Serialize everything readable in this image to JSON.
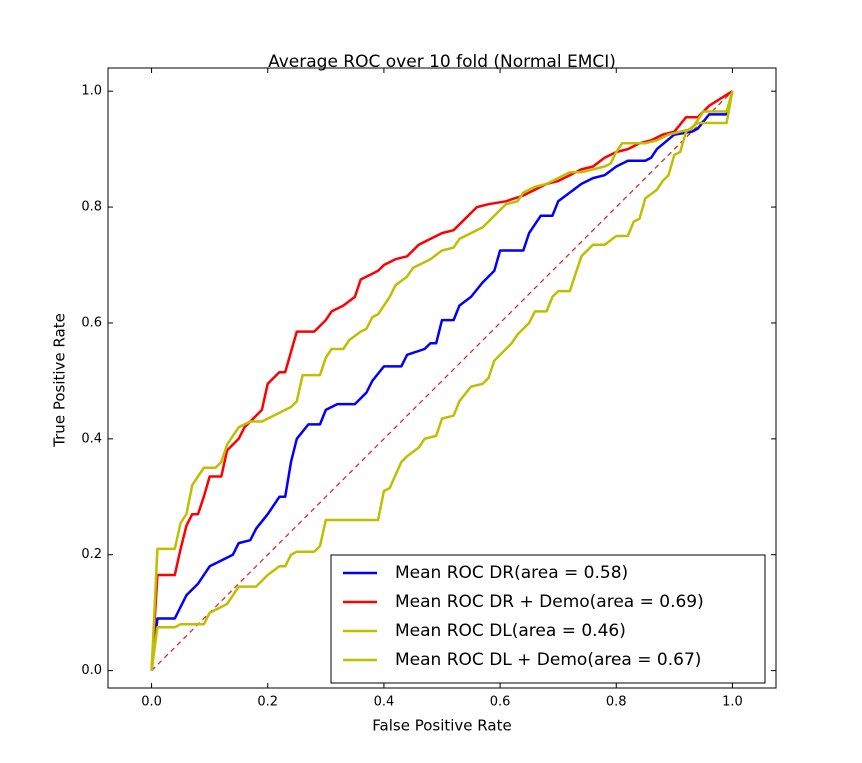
{
  "chart_data": {
    "type": "line",
    "title": "Average ROC over 10 fold (Normal EMCI)",
    "x_label": "False Positive Rate",
    "y_label": "True Positive Rate",
    "xlim": [
      -0.075,
      1.075
    ],
    "ylim": [
      -0.03,
      1.04
    ],
    "xticks": [
      {
        "value": 0,
        "label": "0.0"
      },
      0.2,
      0.4,
      0.6,
      0.8,
      {
        "value": 1,
        "label": "1.0"
      }
    ],
    "yticks": [
      {
        "value": 0,
        "label": "0.0"
      },
      0.2,
      0.4,
      0.6,
      0.8,
      {
        "value": 1,
        "label": "1.0"
      }
    ],
    "legend": "lower right",
    "diagonal": {
      "x": [
        0,
        1
      ],
      "values": [
        0,
        1
      ],
      "color": "#e41a1c",
      "dashed": true
    },
    "series": [
      {
        "name": "Mean ROC DR(area = 0.58)",
        "color": "#0000ff",
        "x": [
          0,
          0.01,
          0.04,
          0.06,
          0.08,
          0.1,
          0.12,
          0.14,
          0.15,
          0.17,
          0.18,
          0.2,
          0.22,
          0.23,
          0.24,
          0.25,
          0.27,
          0.29,
          0.3,
          0.32,
          0.35,
          0.37,
          0.38,
          0.4,
          0.43,
          0.44,
          0.47,
          0.48,
          0.49,
          0.5,
          0.52,
          0.53,
          0.55,
          0.57,
          0.59,
          0.6,
          0.64,
          0.65,
          0.67,
          0.69,
          0.7,
          0.72,
          0.74,
          0.76,
          0.78,
          0.8,
          0.82,
          0.85,
          0.86,
          0.87,
          0.9,
          0.93,
          0.94,
          0.96,
          0.99,
          1
        ],
        "values": [
          0,
          0.09,
          0.09,
          0.13,
          0.15,
          0.18,
          0.19,
          0.2,
          0.22,
          0.225,
          0.245,
          0.27,
          0.3,
          0.3,
          0.36,
          0.4,
          0.425,
          0.425,
          0.45,
          0.46,
          0.46,
          0.48,
          0.5,
          0.525,
          0.525,
          0.545,
          0.555,
          0.565,
          0.565,
          0.605,
          0.605,
          0.63,
          0.645,
          0.67,
          0.69,
          0.725,
          0.725,
          0.755,
          0.785,
          0.785,
          0.81,
          0.825,
          0.84,
          0.85,
          0.855,
          0.87,
          0.88,
          0.88,
          0.885,
          0.9,
          0.925,
          0.93,
          0.935,
          0.96,
          0.96,
          1
        ]
      },
      {
        "name": "Mean ROC DR + Demo(area = 0.69)",
        "color": "#ff0000",
        "x": [
          0,
          0.01,
          0.04,
          0.05,
          0.06,
          0.07,
          0.08,
          0.09,
          0.1,
          0.12,
          0.13,
          0.15,
          0.16,
          0.18,
          0.19,
          0.2,
          0.22,
          0.23,
          0.24,
          0.25,
          0.28,
          0.3,
          0.31,
          0.33,
          0.35,
          0.36,
          0.38,
          0.39,
          0.4,
          0.42,
          0.44,
          0.46,
          0.48,
          0.5,
          0.52,
          0.54,
          0.56,
          0.58,
          0.61,
          0.64,
          0.66,
          0.68,
          0.7,
          0.72,
          0.74,
          0.76,
          0.78,
          0.8,
          0.82,
          0.84,
          0.86,
          0.88,
          0.9,
          0.92,
          0.94,
          0.96,
          1
        ],
        "values": [
          0,
          0.165,
          0.165,
          0.21,
          0.25,
          0.27,
          0.27,
          0.3,
          0.335,
          0.335,
          0.38,
          0.4,
          0.42,
          0.44,
          0.45,
          0.495,
          0.515,
          0.515,
          0.55,
          0.585,
          0.585,
          0.605,
          0.62,
          0.63,
          0.645,
          0.675,
          0.685,
          0.69,
          0.7,
          0.71,
          0.715,
          0.735,
          0.745,
          0.755,
          0.76,
          0.78,
          0.8,
          0.805,
          0.81,
          0.82,
          0.83,
          0.84,
          0.845,
          0.855,
          0.865,
          0.87,
          0.885,
          0.895,
          0.9,
          0.91,
          0.915,
          0.925,
          0.93,
          0.955,
          0.955,
          0.975,
          1
        ]
      },
      {
        "name": "Mean ROC DL(area = 0.46)",
        "color": "#bfbf00",
        "x": [
          0,
          0.01,
          0.04,
          0.05,
          0.09,
          0.1,
          0.13,
          0.15,
          0.18,
          0.2,
          0.22,
          0.23,
          0.24,
          0.25,
          0.28,
          0.29,
          0.3,
          0.39,
          0.4,
          0.41,
          0.43,
          0.44,
          0.46,
          0.47,
          0.49,
          0.5,
          0.52,
          0.53,
          0.55,
          0.57,
          0.58,
          0.59,
          0.61,
          0.62,
          0.63,
          0.65,
          0.66,
          0.68,
          0.69,
          0.7,
          0.72,
          0.74,
          0.76,
          0.78,
          0.8,
          0.82,
          0.83,
          0.84,
          0.85,
          0.87,
          0.88,
          0.89,
          0.9,
          0.91,
          0.92,
          0.94,
          0.99,
          1
        ],
        "values": [
          0,
          0.075,
          0.075,
          0.08,
          0.08,
          0.1,
          0.115,
          0.145,
          0.145,
          0.165,
          0.18,
          0.18,
          0.2,
          0.205,
          0.205,
          0.215,
          0.26,
          0.26,
          0.31,
          0.315,
          0.36,
          0.37,
          0.385,
          0.4,
          0.405,
          0.435,
          0.44,
          0.465,
          0.49,
          0.495,
          0.505,
          0.535,
          0.555,
          0.565,
          0.58,
          0.6,
          0.62,
          0.62,
          0.645,
          0.655,
          0.655,
          0.715,
          0.735,
          0.735,
          0.75,
          0.75,
          0.775,
          0.78,
          0.815,
          0.83,
          0.845,
          0.855,
          0.89,
          0.895,
          0.93,
          0.945,
          0.945,
          1
        ]
      },
      {
        "name": "Mean ROC DL + Demo(area = 0.67)",
        "color": "#bfbf00",
        "x": [
          0,
          0.01,
          0.04,
          0.05,
          0.06,
          0.07,
          0.08,
          0.09,
          0.11,
          0.12,
          0.13,
          0.15,
          0.17,
          0.19,
          0.21,
          0.23,
          0.24,
          0.25,
          0.26,
          0.29,
          0.3,
          0.31,
          0.33,
          0.34,
          0.36,
          0.37,
          0.38,
          0.39,
          0.4,
          0.41,
          0.42,
          0.44,
          0.45,
          0.47,
          0.48,
          0.5,
          0.52,
          0.53,
          0.55,
          0.57,
          0.58,
          0.59,
          0.6,
          0.61,
          0.63,
          0.64,
          0.66,
          0.68,
          0.7,
          0.72,
          0.74,
          0.76,
          0.78,
          0.79,
          0.8,
          0.81,
          0.85,
          0.87,
          0.89,
          0.91,
          0.93,
          0.95,
          0.99,
          1
        ],
        "values": [
          0,
          0.21,
          0.21,
          0.255,
          0.27,
          0.32,
          0.335,
          0.35,
          0.35,
          0.36,
          0.39,
          0.42,
          0.43,
          0.43,
          0.44,
          0.45,
          0.455,
          0.465,
          0.51,
          0.51,
          0.54,
          0.555,
          0.555,
          0.57,
          0.585,
          0.59,
          0.61,
          0.615,
          0.63,
          0.645,
          0.665,
          0.68,
          0.695,
          0.705,
          0.71,
          0.725,
          0.73,
          0.745,
          0.755,
          0.765,
          0.775,
          0.785,
          0.795,
          0.805,
          0.81,
          0.825,
          0.835,
          0.84,
          0.85,
          0.86,
          0.86,
          0.865,
          0.87,
          0.875,
          0.895,
          0.91,
          0.91,
          0.915,
          0.925,
          0.93,
          0.935,
          0.965,
          0.965,
          1
        ]
      }
    ]
  }
}
